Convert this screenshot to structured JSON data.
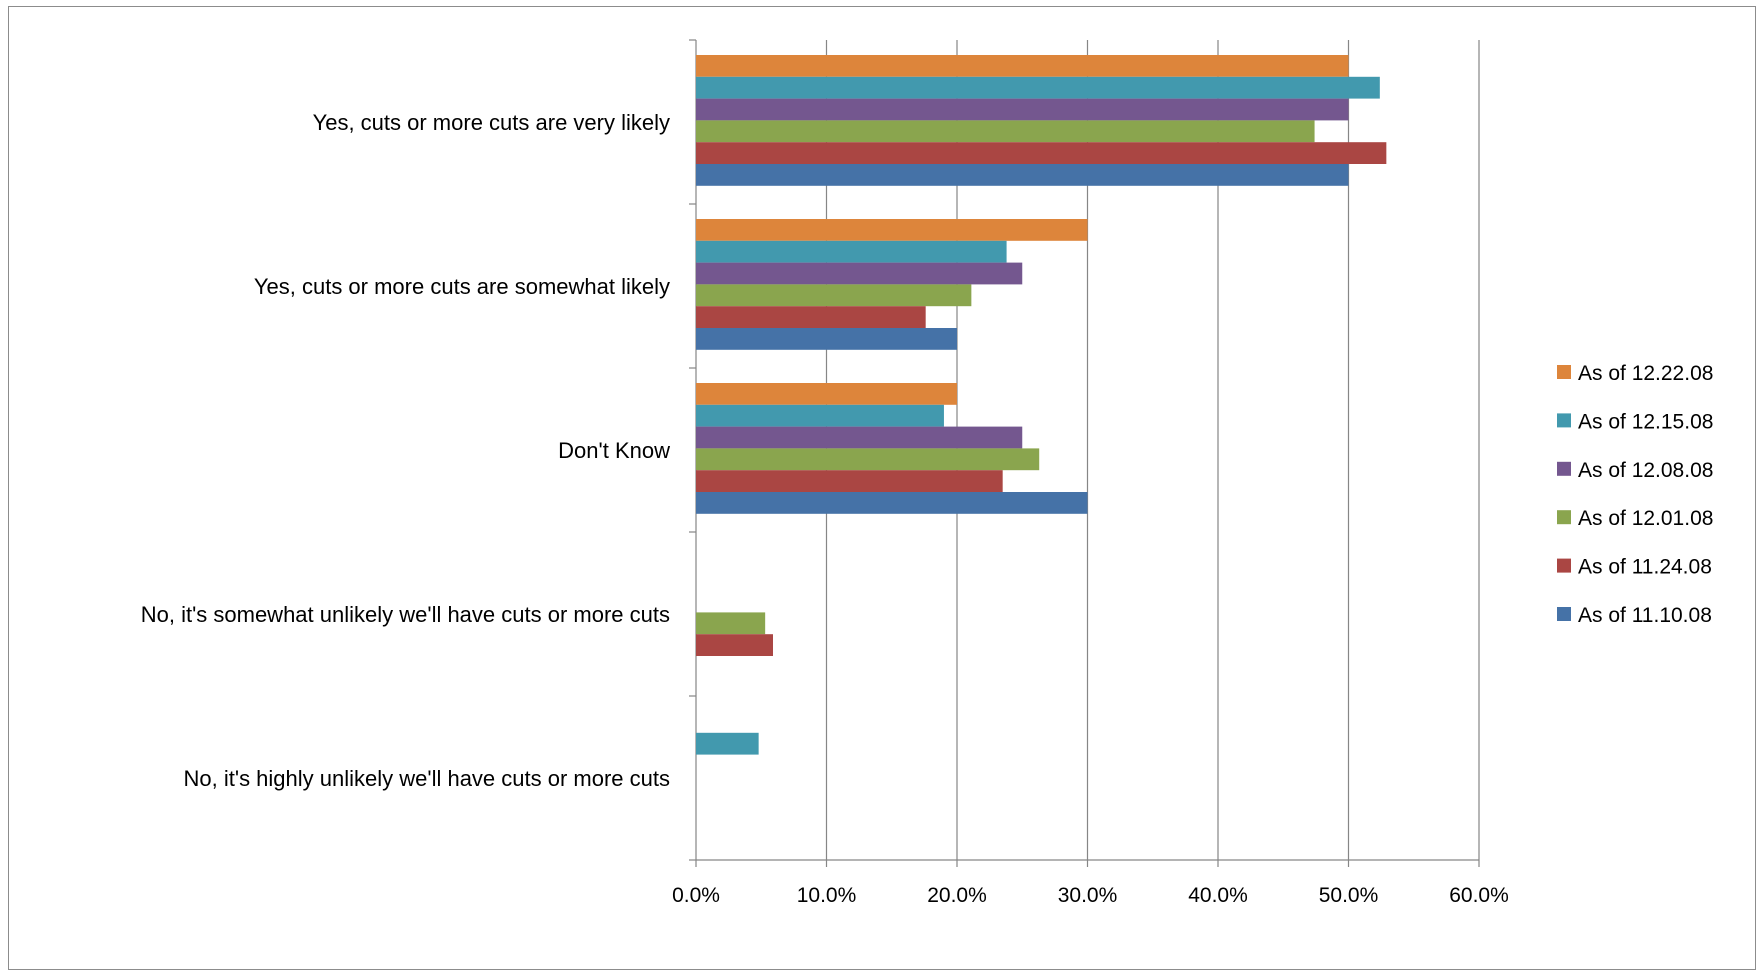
{
  "chart_data": {
    "type": "bar",
    "orientation": "horizontal",
    "categories": [
      "Yes, cuts or more cuts are very likely",
      "Yes, cuts or more cuts are somewhat likely",
      "Don't Know",
      "No, it's somewhat unlikely we'll have cuts or more cuts",
      "No, it's highly unlikely we'll have cuts or more cuts"
    ],
    "series": [
      {
        "name": "As of 12.22.08",
        "color": "#DD853B",
        "values": [
          50.0,
          30.0,
          20.0,
          0,
          0
        ]
      },
      {
        "name": "As of 12.15.08",
        "color": "#4299AE",
        "values": [
          52.4,
          23.8,
          19.0,
          0,
          4.8
        ]
      },
      {
        "name": "As of 12.08.08",
        "color": "#74578F",
        "values": [
          50.0,
          25.0,
          25.0,
          0,
          0
        ]
      },
      {
        "name": "As of 12.01.08",
        "color": "#8AA54E",
        "values": [
          47.4,
          21.1,
          26.3,
          5.3,
          0
        ]
      },
      {
        "name": "As of 11.24.08",
        "color": "#AA4643",
        "values": [
          52.9,
          17.6,
          23.5,
          5.9,
          0
        ]
      },
      {
        "name": "As of 11.10.08",
        "color": "#4572A7",
        "values": [
          50.0,
          20.0,
          30.0,
          0,
          0
        ]
      }
    ],
    "xlim": [
      0,
      60
    ],
    "x_ticks": [
      "0.0%",
      "10.0%",
      "20.0%",
      "30.0%",
      "40.0%",
      "50.0%",
      "60.0%"
    ],
    "grid": true,
    "legend_position": "right",
    "title": "",
    "xlabel": "",
    "ylabel": ""
  }
}
